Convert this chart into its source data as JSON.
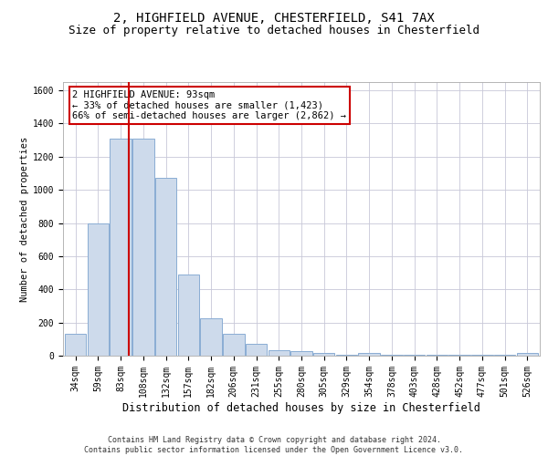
{
  "title_line1": "2, HIGHFIELD AVENUE, CHESTERFIELD, S41 7AX",
  "title_line2": "Size of property relative to detached houses in Chesterfield",
  "xlabel": "Distribution of detached houses by size in Chesterfield",
  "ylabel": "Number of detached properties",
  "footer_line1": "Contains HM Land Registry data © Crown copyright and database right 2024.",
  "footer_line2": "Contains public sector information licensed under the Open Government Licence v3.0.",
  "categories": [
    "34sqm",
    "59sqm",
    "83sqm",
    "108sqm",
    "132sqm",
    "157sqm",
    "182sqm",
    "206sqm",
    "231sqm",
    "255sqm",
    "280sqm",
    "305sqm",
    "329sqm",
    "354sqm",
    "378sqm",
    "403sqm",
    "428sqm",
    "452sqm",
    "477sqm",
    "501sqm",
    "526sqm"
  ],
  "values": [
    130,
    800,
    1310,
    1310,
    1070,
    490,
    225,
    130,
    70,
    35,
    25,
    15,
    5,
    15,
    5,
    5,
    5,
    5,
    5,
    5,
    15
  ],
  "bar_color": "#cddaeb",
  "bar_edge_color": "#8aadd4",
  "grid_color": "#c8c8d8",
  "vline_color": "#cc0000",
  "vline_x": 2.35,
  "annotation_text": "2 HIGHFIELD AVENUE: 93sqm\n← 33% of detached houses are smaller (1,423)\n66% of semi-detached houses are larger (2,862) →",
  "annotation_box_color": "#ffffff",
  "annotation_box_edge_color": "#cc0000",
  "ylim": [
    0,
    1650
  ],
  "yticks": [
    0,
    200,
    400,
    600,
    800,
    1000,
    1200,
    1400,
    1600
  ],
  "background_color": "#ffffff",
  "title1_fontsize": 10,
  "title2_fontsize": 9,
  "xlabel_fontsize": 8.5,
  "ylabel_fontsize": 7.5,
  "tick_fontsize": 7,
  "ann_fontsize": 7.5,
  "footer_fontsize": 6
}
